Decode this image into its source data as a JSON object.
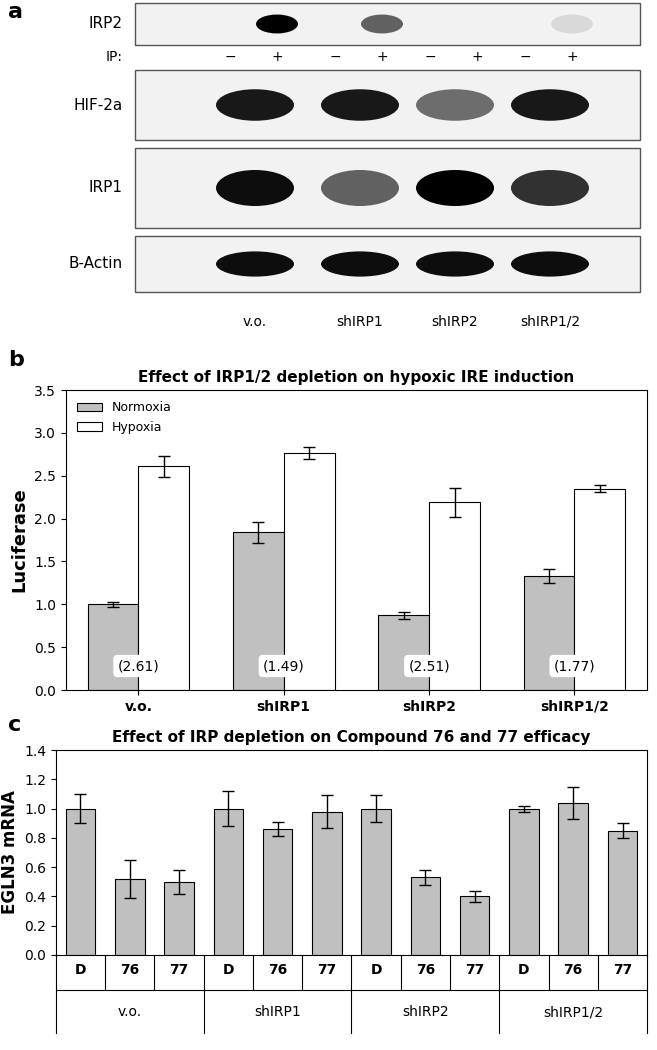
{
  "blot": {
    "panel": "a",
    "lanes": [
      "v.o.",
      "shIRP1",
      "shIRP2",
      "shIRP1/2"
    ],
    "rows": [
      {
        "label": "IRP2",
        "intensities": [
          0,
          1,
          0,
          0.6,
          0,
          0,
          0,
          0.1
        ],
        "ip_label": "IP:",
        "ip_marks": [
          "−",
          "+",
          "−",
          "+",
          "−",
          "+",
          "−",
          "+"
        ]
      },
      {
        "label": "HIF-2a",
        "intensities": [
          0.9,
          0.9,
          0.55,
          0.9
        ]
      },
      {
        "label": "IRP1",
        "intensities": [
          0.95,
          0.6,
          1,
          0.8
        ]
      },
      {
        "label": "B-Actin",
        "intensities": [
          0.95,
          0.95,
          0.95,
          0.95
        ]
      }
    ]
  },
  "chart_data": [
    {
      "type": "bar",
      "panel": "b",
      "title": "Effect of IRP1/2 depletion on hypoxic IRE induction",
      "y_label": "Luciferase",
      "categories": [
        "v.o.",
        "shIRP1",
        "shIRP2",
        "shIRP1/2"
      ],
      "series": [
        {
          "name": "Normoxia",
          "color": "#c0c0c0",
          "values": [
            1.0,
            1.84,
            0.87,
            1.33
          ],
          "errors": [
            0.03,
            0.12,
            0.04,
            0.08
          ]
        },
        {
          "name": "Hypoxia",
          "color": "#ffffff",
          "values": [
            2.61,
            2.76,
            2.19,
            2.35
          ],
          "errors": [
            0.12,
            0.07,
            0.17,
            0.04
          ]
        }
      ],
      "annotations": [
        "(2.61)",
        "(1.49)",
        "(2.51)",
        "(1.77)"
      ],
      "legend": "upper left",
      "ylim": [
        0,
        3.5
      ],
      "yticks": [
        {
          "value": 0,
          "label": "0.0"
        },
        0.5,
        {
          "value": 1,
          "label": "1.0"
        },
        1.5,
        {
          "value": 2,
          "label": "2.0"
        },
        2.5,
        {
          "value": 3,
          "label": "3.0"
        },
        3.5
      ]
    },
    {
      "type": "bar",
      "panel": "c",
      "title": "Effect of IRP depletion on Compound 76 and 77 efficacy",
      "y_label": "EGLN3 mRNA",
      "categories": [
        "D",
        "76",
        "77",
        "D",
        "76",
        "77",
        "D",
        "76",
        "77",
        "D",
        "76",
        "77"
      ],
      "groups": [
        "v.o.",
        "shIRP1",
        "shIRP2",
        "shIRP1/2"
      ],
      "values": [
        1.0,
        0.52,
        0.5,
        1.0,
        0.86,
        0.98,
        1.0,
        0.53,
        0.4,
        1.0,
        1.04,
        0.85
      ],
      "errors": [
        0.1,
        0.13,
        0.08,
        0.12,
        0.05,
        0.11,
        0.09,
        0.05,
        0.04,
        0.02,
        0.11,
        0.05
      ],
      "color": "#c0c0c0",
      "ylim": [
        0,
        1.4
      ],
      "yticks": [
        {
          "value": 0,
          "label": "0.0"
        },
        0.2,
        0.4,
        0.6,
        0.8,
        {
          "value": 1,
          "label": "1.0"
        },
        1.2,
        1.4
      ]
    }
  ]
}
